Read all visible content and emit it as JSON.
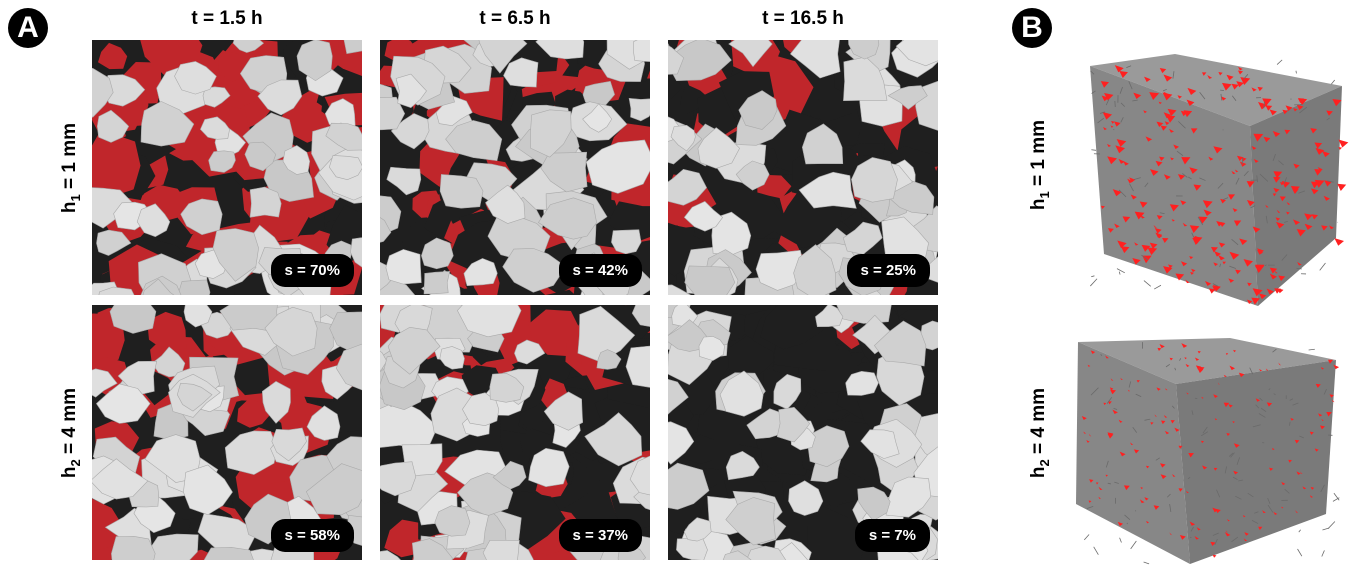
{
  "panels": {
    "a": "A",
    "b": "B"
  },
  "columns": [
    "t = 1.5 h",
    "t = 6.5 h",
    "t = 16.5 h"
  ],
  "rows": [
    {
      "label_main": "h",
      "label_sub": "1",
      "label_rest": " = 1 mm"
    },
    {
      "label_main": "h",
      "label_sub": "2",
      "label_rest": " = 4 mm"
    }
  ],
  "saturation": [
    [
      "s = 70%",
      "s = 42%",
      "s = 25%"
    ],
    [
      "s = 58%",
      "s = 37%",
      "s = 7%"
    ]
  ],
  "saturation_level": [
    [
      0.7,
      0.42,
      0.25
    ],
    [
      0.58,
      0.37,
      0.07
    ]
  ],
  "colors": {
    "water": "#c0262b",
    "air": "#1f1f1f",
    "grain": "#d6d6d6",
    "cube_water": "#ff2020",
    "cube_grain": "#8c8c8c"
  }
}
